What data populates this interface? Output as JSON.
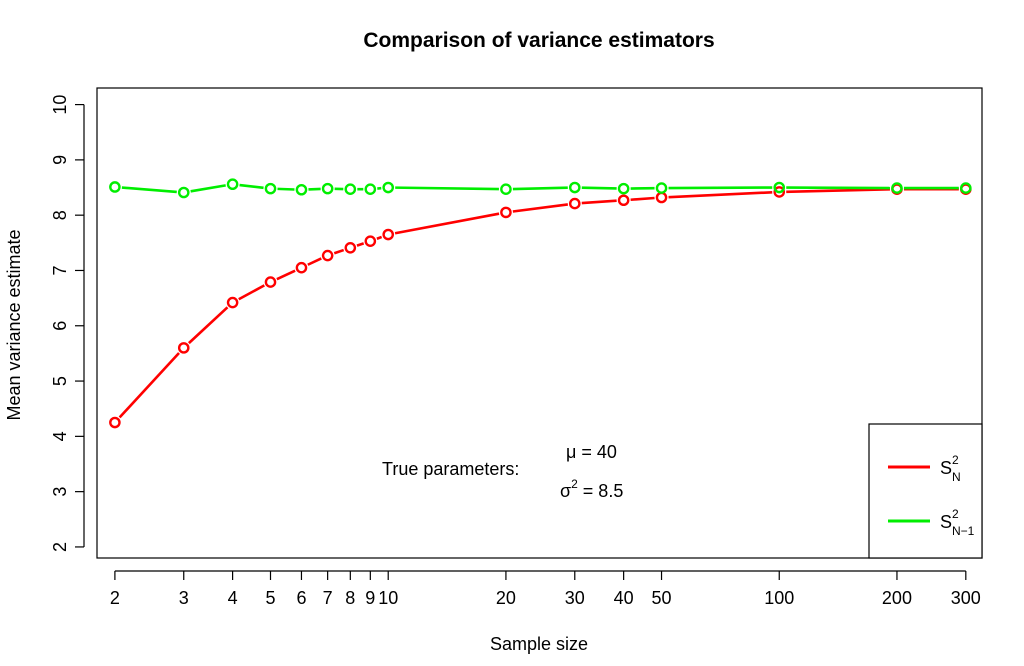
{
  "chart_data": {
    "type": "line",
    "title": "Comparison of variance estimators",
    "xlabel": "Sample size",
    "ylabel": "Mean variance estimate",
    "x_scale": "log",
    "x": [
      2,
      3,
      4,
      5,
      6,
      7,
      8,
      9,
      10,
      20,
      30,
      40,
      50,
      100,
      200,
      300
    ],
    "x_tick_labels": [
      "2",
      "3",
      "4",
      "5",
      "6",
      "7",
      "8",
      "9",
      "10",
      "20",
      "30",
      "40",
      "50",
      "100",
      "200",
      "300"
    ],
    "y_ticks": [
      2,
      3,
      4,
      5,
      6,
      7,
      8,
      9,
      10
    ],
    "ylim": [
      1.8,
      10.3
    ],
    "xlim": [
      1.8,
      330
    ],
    "series": [
      {
        "name": "S_N^2",
        "legend_main": "S",
        "legend_sup": "2",
        "legend_sub": "N",
        "color": "#ff0000",
        "values": [
          4.25,
          5.6,
          6.42,
          6.79,
          7.05,
          7.27,
          7.41,
          7.53,
          7.65,
          8.05,
          8.21,
          8.27,
          8.32,
          8.42,
          8.47,
          8.47
        ]
      },
      {
        "name": "S_N-1^2",
        "legend_main": "S",
        "legend_sup": "2",
        "legend_sub": "N−1",
        "color": "#00ee00",
        "values": [
          8.51,
          8.41,
          8.56,
          8.48,
          8.46,
          8.48,
          8.47,
          8.47,
          8.5,
          8.47,
          8.5,
          8.48,
          8.49,
          8.5,
          8.49,
          8.49
        ]
      }
    ],
    "annotation": {
      "label": "True parameters:",
      "mu_symbol": "μ",
      "mu_text": " = 40",
      "sigma_symbol": "σ",
      "sigma_sup": "2",
      "sigma_text": " = 8.5"
    },
    "legend_position": "bottom-right",
    "grid": false
  }
}
